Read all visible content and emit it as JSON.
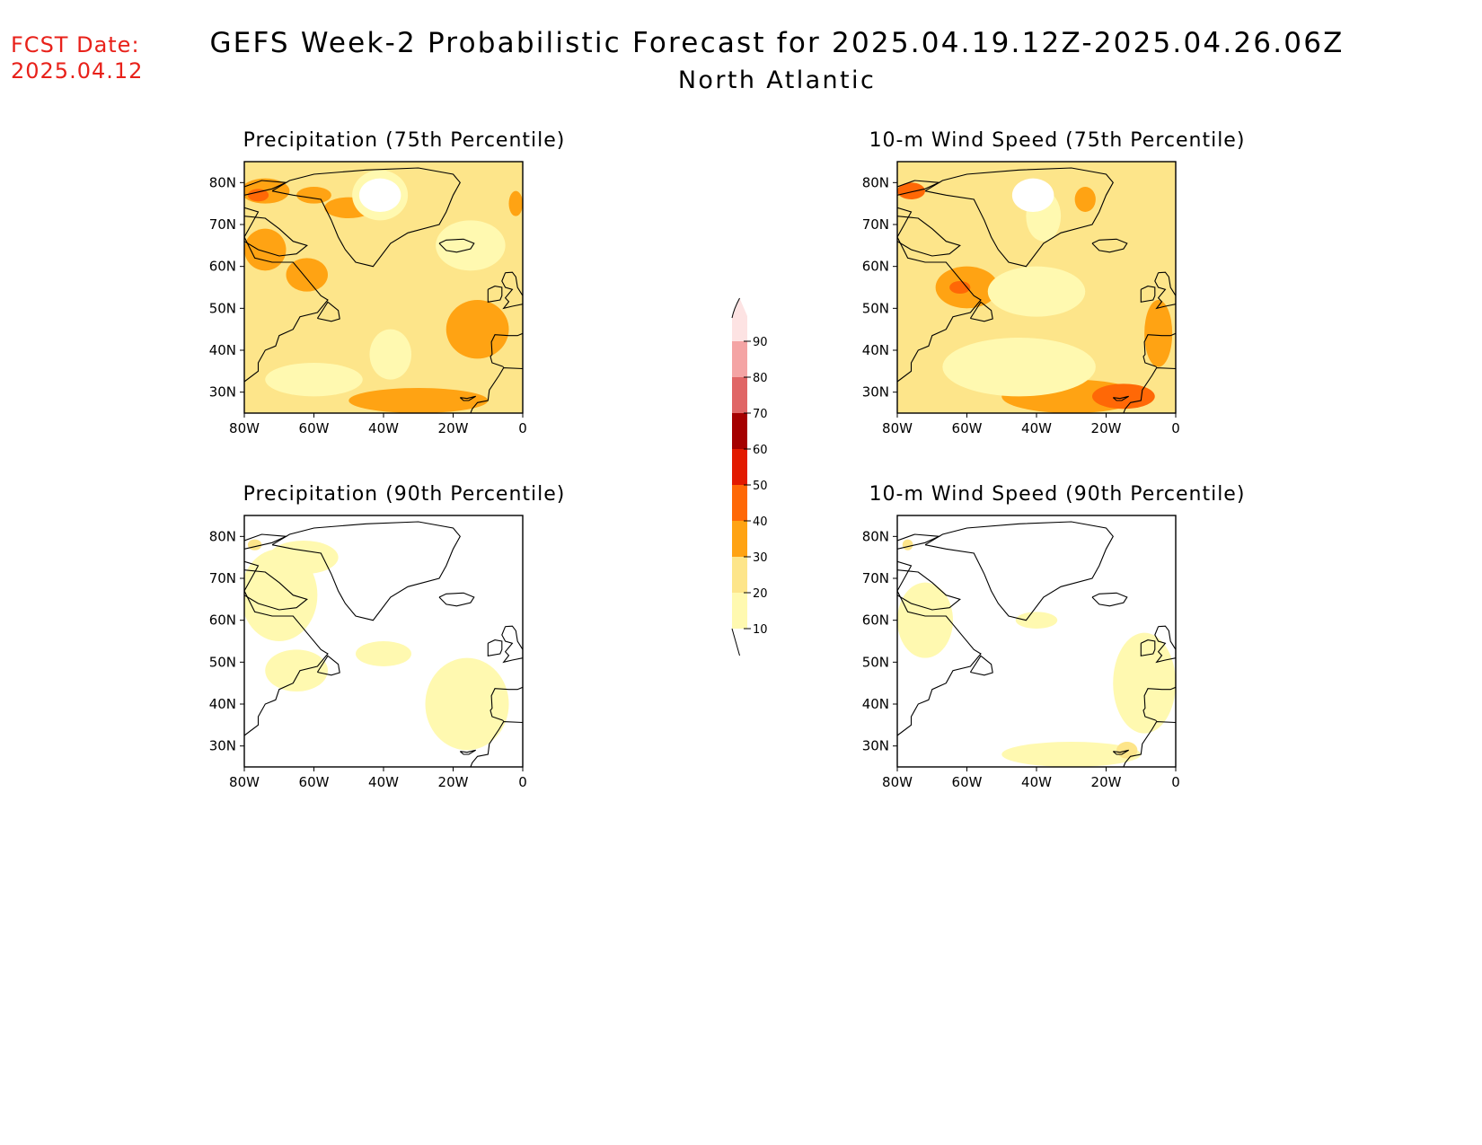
{
  "header": {
    "fcst_label": "FCST Date:",
    "fcst_date": "2025.04.12",
    "title": "GEFS Week-2 Probabilistic Forecast for 2025.04.19.12Z-2025.04.26.06Z",
    "subtitle": "North Atlantic"
  },
  "colorbar": {
    "levels": [
      10,
      20,
      30,
      40,
      50,
      60,
      70,
      80,
      90
    ],
    "labels": [
      "10",
      "20",
      "30",
      "40",
      "50",
      "60",
      "70",
      "80",
      "90"
    ],
    "colors": [
      "#fff9b0",
      "#fde58a",
      "#ffa313",
      "#ff6806",
      "#e21a00",
      "#a50000",
      "#e06666",
      "#f4a4a4",
      "#fde3e3"
    ]
  },
  "axes": {
    "lon_ticks": [
      "80W",
      "60W",
      "40W",
      "20W",
      "0"
    ],
    "lat_ticks": [
      "80N",
      "70N",
      "60N",
      "50N",
      "40N",
      "30N"
    ],
    "lon_range": [
      -80,
      0
    ],
    "lat_range": [
      25,
      85
    ]
  },
  "panels": [
    {
      "id": "precip-75",
      "title": "Precipitation (75th Percentile)",
      "background_level": 20,
      "patches": [
        {
          "level": 30,
          "lon": -74,
          "lat": 78,
          "rx": 7,
          "ry": 3
        },
        {
          "level": 40,
          "lon": -76,
          "lat": 77,
          "rx": 3,
          "ry": 1.5
        },
        {
          "level": 30,
          "lon": -60,
          "lat": 77,
          "rx": 5,
          "ry": 2
        },
        {
          "level": 30,
          "lon": -50,
          "lat": 74,
          "rx": 7,
          "ry": 2.5
        },
        {
          "level": 30,
          "lon": -2,
          "lat": 75,
          "rx": 2,
          "ry": 3
        },
        {
          "level": 30,
          "lon": -74,
          "lat": 64,
          "rx": 6,
          "ry": 5
        },
        {
          "level": 30,
          "lon": -62,
          "lat": 58,
          "rx": 6,
          "ry": 4
        },
        {
          "level": 30,
          "lon": -13,
          "lat": 45,
          "rx": 9,
          "ry": 7
        },
        {
          "level": 30,
          "lon": -30,
          "lat": 28,
          "rx": 20,
          "ry": 3
        },
        {
          "level": 10,
          "lon": -41,
          "lat": 77,
          "rx": 8,
          "ry": 6
        },
        {
          "level": 10,
          "lon": -60,
          "lat": 33,
          "rx": 14,
          "ry": 4
        },
        {
          "level": 10,
          "lon": -38,
          "lat": 39,
          "rx": 6,
          "ry": 6
        },
        {
          "level": 10,
          "lon": -15,
          "lat": 65,
          "rx": 10,
          "ry": 6
        }
      ]
    },
    {
      "id": "wind-75",
      "title": "10-m Wind Speed (75th Percentile)",
      "background_level": 20,
      "patches": [
        {
          "level": 30,
          "lon": -60,
          "lat": 55,
          "rx": 9,
          "ry": 5
        },
        {
          "level": 40,
          "lon": -62,
          "lat": 55,
          "rx": 3,
          "ry": 1.5
        },
        {
          "level": 40,
          "lon": -76,
          "lat": 78,
          "rx": 4,
          "ry": 2
        },
        {
          "level": 30,
          "lon": -30,
          "lat": 29,
          "rx": 20,
          "ry": 4
        },
        {
          "level": 40,
          "lon": -15,
          "lat": 29,
          "rx": 9,
          "ry": 3
        },
        {
          "level": 30,
          "lon": -26,
          "lat": 76,
          "rx": 3,
          "ry": 3
        },
        {
          "level": 30,
          "lon": -5,
          "lat": 44,
          "rx": 4,
          "ry": 8
        },
        {
          "level": 10,
          "lon": -45,
          "lat": 36,
          "rx": 22,
          "ry": 7
        },
        {
          "level": 10,
          "lon": -40,
          "lat": 54,
          "rx": 14,
          "ry": 6
        },
        {
          "level": 10,
          "lon": -38,
          "lat": 72,
          "rx": 5,
          "ry": 6
        }
      ]
    },
    {
      "id": "precip-90",
      "title": "Precipitation (90th Percentile)",
      "background_level": 0,
      "patches": [
        {
          "level": 10,
          "lon": -70,
          "lat": 66,
          "rx": 11,
          "ry": 11
        },
        {
          "level": 10,
          "lon": -63,
          "lat": 75,
          "rx": 10,
          "ry": 4
        },
        {
          "level": 10,
          "lon": -16,
          "lat": 40,
          "rx": 12,
          "ry": 11
        },
        {
          "level": 10,
          "lon": -40,
          "lat": 52,
          "rx": 8,
          "ry": 3
        },
        {
          "level": 10,
          "lon": -65,
          "lat": 48,
          "rx": 9,
          "ry": 5
        },
        {
          "level": 20,
          "lon": -77,
          "lat": 78,
          "rx": 2,
          "ry": 1.3
        }
      ]
    },
    {
      "id": "wind-90",
      "title": "10-m Wind Speed (90th Percentile)",
      "background_level": 0,
      "patches": [
        {
          "level": 10,
          "lon": -72,
          "lat": 60,
          "rx": 8,
          "ry": 9
        },
        {
          "level": 10,
          "lon": -30,
          "lat": 28,
          "rx": 20,
          "ry": 3
        },
        {
          "level": 10,
          "lon": -9,
          "lat": 45,
          "rx": 9,
          "ry": 12
        },
        {
          "level": 10,
          "lon": -40,
          "lat": 60,
          "rx": 6,
          "ry": 2
        },
        {
          "level": 20,
          "lon": -14,
          "lat": 29,
          "rx": 3,
          "ry": 2
        },
        {
          "level": 20,
          "lon": -77,
          "lat": 78,
          "rx": 1.5,
          "ry": 1.3
        }
      ]
    }
  ],
  "coastlines": {
    "greenland": [
      [
        -72,
        78
      ],
      [
        -67,
        80.5
      ],
      [
        -60,
        82
      ],
      [
        -45,
        83
      ],
      [
        -30,
        83.5
      ],
      [
        -20,
        82
      ],
      [
        -18,
        80
      ],
      [
        -20,
        77
      ],
      [
        -22,
        73
      ],
      [
        -24,
        70
      ],
      [
        -33,
        68
      ],
      [
        -38,
        65.5
      ],
      [
        -43,
        60
      ],
      [
        -48,
        61
      ],
      [
        -51,
        64
      ],
      [
        -53,
        67
      ],
      [
        -55,
        71
      ],
      [
        -58,
        76
      ],
      [
        -66,
        77
      ],
      [
        -72,
        78
      ]
    ],
    "iceland": [
      [
        -24,
        65.5
      ],
      [
        -22,
        66.3
      ],
      [
        -17,
        66.5
      ],
      [
        -14,
        65.5
      ],
      [
        -15,
        64.2
      ],
      [
        -19,
        63.4
      ],
      [
        -22,
        63.8
      ],
      [
        -24,
        65.5
      ]
    ],
    "north_america": [
      [
        -80,
        74
      ],
      [
        -76,
        73
      ],
      [
        -78,
        70
      ],
      [
        -80,
        67
      ],
      [
        -77,
        62
      ],
      [
        -72,
        61
      ],
      [
        -66,
        61
      ],
      [
        -64,
        59
      ],
      [
        -61,
        56
      ],
      [
        -58,
        53
      ],
      [
        -56,
        52
      ],
      [
        -59,
        49
      ],
      [
        -64,
        48
      ],
      [
        -66,
        45
      ],
      [
        -70,
        43.5
      ],
      [
        -71,
        41
      ],
      [
        -74,
        40
      ],
      [
        -76,
        37
      ],
      [
        -76,
        35
      ],
      [
        -80,
        32.5
      ]
    ],
    "newfoundland": [
      [
        -59,
        47.6
      ],
      [
        -56,
        51.5
      ],
      [
        -53,
        49.5
      ],
      [
        -52.6,
        47.5
      ],
      [
        -55,
        46.9
      ],
      [
        -59,
        47.6
      ]
    ],
    "baffin": [
      [
        -80,
        72
      ],
      [
        -74,
        71.5
      ],
      [
        -70,
        69
      ],
      [
        -66,
        66
      ],
      [
        -62,
        65
      ],
      [
        -65,
        63
      ],
      [
        -70,
        62.5
      ],
      [
        -76,
        64
      ],
      [
        -80,
        66
      ]
    ],
    "arctic_islands": [
      [
        -80,
        79
      ],
      [
        -75,
        80.5
      ],
      [
        -68,
        80
      ],
      [
        -72,
        78.5
      ],
      [
        -80,
        77
      ]
    ],
    "ireland": [
      [
        -10,
        54.5
      ],
      [
        -8,
        55.3
      ],
      [
        -6,
        55
      ],
      [
        -6,
        53
      ],
      [
        -6.5,
        52
      ],
      [
        -10,
        51.5
      ],
      [
        -10,
        53
      ],
      [
        -10,
        54.5
      ]
    ],
    "britain": [
      [
        -5,
        58.5
      ],
      [
        -3,
        58.6
      ],
      [
        -2,
        57.5
      ],
      [
        -1.5,
        55
      ],
      [
        0,
        53
      ],
      [
        0,
        51
      ],
      [
        -3,
        50.5
      ],
      [
        -5.5,
        50
      ],
      [
        -4,
        51.6
      ],
      [
        -5,
        52.5
      ],
      [
        -4,
        53.5
      ],
      [
        -3,
        54.5
      ],
      [
        -5,
        55
      ],
      [
        -6,
        56.5
      ],
      [
        -5,
        58.5
      ]
    ],
    "europe": [
      [
        0,
        44
      ],
      [
        -1.5,
        43.5
      ],
      [
        -4,
        43.5
      ],
      [
        -8,
        43.7
      ],
      [
        -9,
        42
      ],
      [
        -8.8,
        39
      ],
      [
        -9.3,
        38.5
      ],
      [
        -8.8,
        37
      ],
      [
        -6,
        36.2
      ],
      [
        -5.5,
        36
      ]
    ],
    "africa": [
      [
        0,
        35.6
      ],
      [
        -5.5,
        35.8
      ],
      [
        -6.8,
        34
      ],
      [
        -9.6,
        30.5
      ],
      [
        -10,
        28
      ],
      [
        -13,
        27.5
      ],
      [
        -14.5,
        26
      ],
      [
        -15,
        25
      ]
    ],
    "canaries": [
      [
        -18,
        28.7
      ],
      [
        -17,
        28
      ],
      [
        -15.5,
        28
      ],
      [
        -13.5,
        29
      ],
      [
        -16,
        28.5
      ],
      [
        -18,
        28.7
      ]
    ]
  }
}
